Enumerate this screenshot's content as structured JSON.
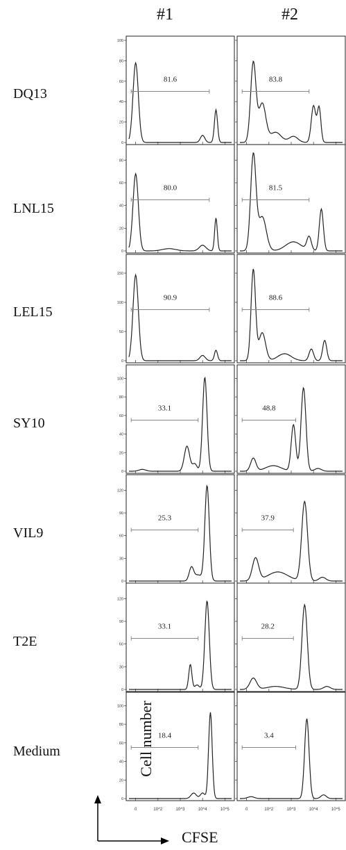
{
  "columns": [
    "#1",
    "#2"
  ],
  "rows": [
    "DQ13",
    "LNL15",
    "LEL15",
    "SY10",
    "VIL9",
    "T2E",
    "Medium"
  ],
  "y_axis_label": "Cell number",
  "x_axis_label": "CFSE",
  "x_ticks": [
    "0",
    "10^2",
    "10^3",
    "10^4",
    "10^5"
  ],
  "chart_data": {
    "type": "histogram-grid",
    "xlabel": "CFSE",
    "ylabel": "Cell number",
    "x_scale": "biexponential",
    "x_tick_labels": [
      "0",
      "10^2",
      "10^3",
      "10^4",
      "10^5"
    ],
    "panels": [
      {
        "row": "DQ13",
        "col": "#1",
        "ymax": 100,
        "yticks": [
          0,
          20,
          40,
          60,
          80,
          100
        ],
        "gate_pct": "81.6",
        "gate_range": [
          -0.2,
          3.3
        ],
        "peaks": [
          [
            0,
            78,
            0.12
          ],
          [
            3,
            7,
            0.1
          ],
          [
            3.6,
            32,
            0.07
          ]
        ]
      },
      {
        "row": "DQ13",
        "col": "#2",
        "ymax": 100,
        "yticks": [
          0,
          20,
          40,
          60,
          80,
          100
        ],
        "gate_pct": "83.8",
        "gate_range": [
          -0.2,
          2.8
        ],
        "peaks": [
          [
            0.3,
            78,
            0.12
          ],
          [
            0.7,
            38,
            0.16
          ],
          [
            1.3,
            10,
            0.25
          ],
          [
            2.1,
            6,
            0.2
          ],
          [
            3.0,
            36,
            0.1
          ],
          [
            3.25,
            34,
            0.08
          ]
        ]
      },
      {
        "row": "LNL15",
        "col": "#1",
        "ymax": 90,
        "yticks": [
          0,
          20,
          40,
          60,
          80
        ],
        "gate_pct": "80.0",
        "gate_range": [
          -0.2,
          3.3
        ],
        "peaks": [
          [
            0,
            68,
            0.12
          ],
          [
            1.5,
            2,
            0.3
          ],
          [
            3,
            5,
            0.15
          ],
          [
            3.6,
            29,
            0.06
          ]
        ]
      },
      {
        "row": "LNL15",
        "col": "#2",
        "ymax": 90,
        "yticks": [
          0,
          20,
          40,
          60,
          80
        ],
        "gate_pct": "81.5",
        "gate_range": [
          -0.2,
          2.8
        ],
        "peaks": [
          [
            0.3,
            84,
            0.12
          ],
          [
            0.7,
            30,
            0.18
          ],
          [
            2.1,
            8,
            0.35
          ],
          [
            2.8,
            12,
            0.1
          ],
          [
            3.35,
            37,
            0.09
          ]
        ]
      },
      {
        "row": "LEL15",
        "col": "#1",
        "ymax": 175,
        "yticks": [
          0,
          50,
          100,
          150
        ],
        "gate_pct": "90.9",
        "gate_range": [
          -0.2,
          3.3
        ],
        "peaks": [
          [
            0,
            147,
            0.12
          ],
          [
            3,
            9,
            0.12
          ],
          [
            3.6,
            18,
            0.07
          ]
        ]
      },
      {
        "row": "LEL15",
        "col": "#2",
        "ymax": 175,
        "yticks": [
          0,
          50,
          100,
          150
        ],
        "gate_pct": "88.6",
        "gate_range": [
          -0.2,
          2.8
        ],
        "peaks": [
          [
            0.3,
            156,
            0.1
          ],
          [
            0.7,
            48,
            0.15
          ],
          [
            1.7,
            12,
            0.3
          ],
          [
            2.9,
            20,
            0.1
          ],
          [
            3.5,
            35,
            0.09
          ]
        ]
      },
      {
        "row": "SY10",
        "col": "#1",
        "ymax": 110,
        "yticks": [
          0,
          20,
          40,
          60,
          80,
          100
        ],
        "gate_pct": "33.1",
        "gate_range": [
          -0.2,
          2.8
        ],
        "peaks": [
          [
            0.3,
            2,
            0.15
          ],
          [
            2.3,
            27,
            0.12
          ],
          [
            2.65,
            8,
            0.1
          ],
          [
            3.1,
            101,
            0.1
          ]
        ]
      },
      {
        "row": "SY10",
        "col": "#2",
        "ymax": 110,
        "yticks": [
          0,
          20,
          40,
          60,
          80,
          100
        ],
        "gate_pct": "48.8",
        "gate_range": [
          -0.2,
          2.2
        ],
        "peaks": [
          [
            0.3,
            14,
            0.12
          ],
          [
            1.2,
            6,
            0.35
          ],
          [
            2.1,
            50,
            0.1
          ],
          [
            2.55,
            90,
            0.11
          ],
          [
            3.2,
            3,
            0.15
          ]
        ]
      },
      {
        "row": "VIL9",
        "col": "#1",
        "ymax": 135,
        "yticks": [
          0,
          30,
          60,
          90,
          120
        ],
        "gate_pct": "25.3",
        "gate_range": [
          -0.2,
          2.8
        ],
        "peaks": [
          [
            2.5,
            18,
            0.1
          ],
          [
            2.8,
            8,
            0.15
          ],
          [
            3.2,
            126,
            0.1
          ]
        ]
      },
      {
        "row": "VIL9",
        "col": "#2",
        "ymax": 135,
        "yticks": [
          0,
          30,
          60,
          90,
          120
        ],
        "gate_pct": "37.9",
        "gate_range": [
          -0.2,
          2.1
        ],
        "peaks": [
          [
            0.4,
            30,
            0.14
          ],
          [
            1.4,
            12,
            0.45
          ],
          [
            2.6,
            105,
            0.13
          ],
          [
            3.4,
            5,
            0.15
          ]
        ]
      },
      {
        "row": "T2E",
        "col": "#1",
        "ymax": 135,
        "yticks": [
          0,
          30,
          60,
          90,
          120
        ],
        "gate_pct": "33.1",
        "gate_range": [
          -0.2,
          2.8
        ],
        "peaks": [
          [
            2.45,
            33,
            0.07
          ],
          [
            2.75,
            6,
            0.1
          ],
          [
            3.2,
            117,
            0.1
          ]
        ]
      },
      {
        "row": "T2E",
        "col": "#2",
        "ymax": 135,
        "yticks": [
          0,
          30,
          60,
          90,
          120
        ],
        "gate_pct": "28.2",
        "gate_range": [
          -0.2,
          2.1
        ],
        "peaks": [
          [
            0.3,
            15,
            0.15
          ],
          [
            1.3,
            4,
            0.4
          ],
          [
            2.6,
            112,
            0.12
          ],
          [
            3.6,
            4,
            0.15
          ]
        ]
      },
      {
        "row": "Medium",
        "col": "#1",
        "ymax": 110,
        "yticks": [
          0,
          20,
          40,
          60,
          80,
          100
        ],
        "gate_pct": "18.4",
        "gate_range": [
          -0.2,
          2.8
        ],
        "peaks": [
          [
            2.6,
            6,
            0.12
          ],
          [
            3.0,
            6,
            0.1
          ],
          [
            3.35,
            93,
            0.08
          ]
        ]
      },
      {
        "row": "Medium",
        "col": "#2",
        "ymax": 110,
        "yticks": [
          0,
          20,
          40,
          60,
          80,
          100
        ],
        "gate_pct": "3.4",
        "gate_range": [
          -0.2,
          2.2
        ],
        "peaks": [
          [
            0.2,
            2,
            0.15
          ],
          [
            2.7,
            86,
            0.1
          ],
          [
            3.45,
            4,
            0.12
          ]
        ]
      }
    ]
  }
}
